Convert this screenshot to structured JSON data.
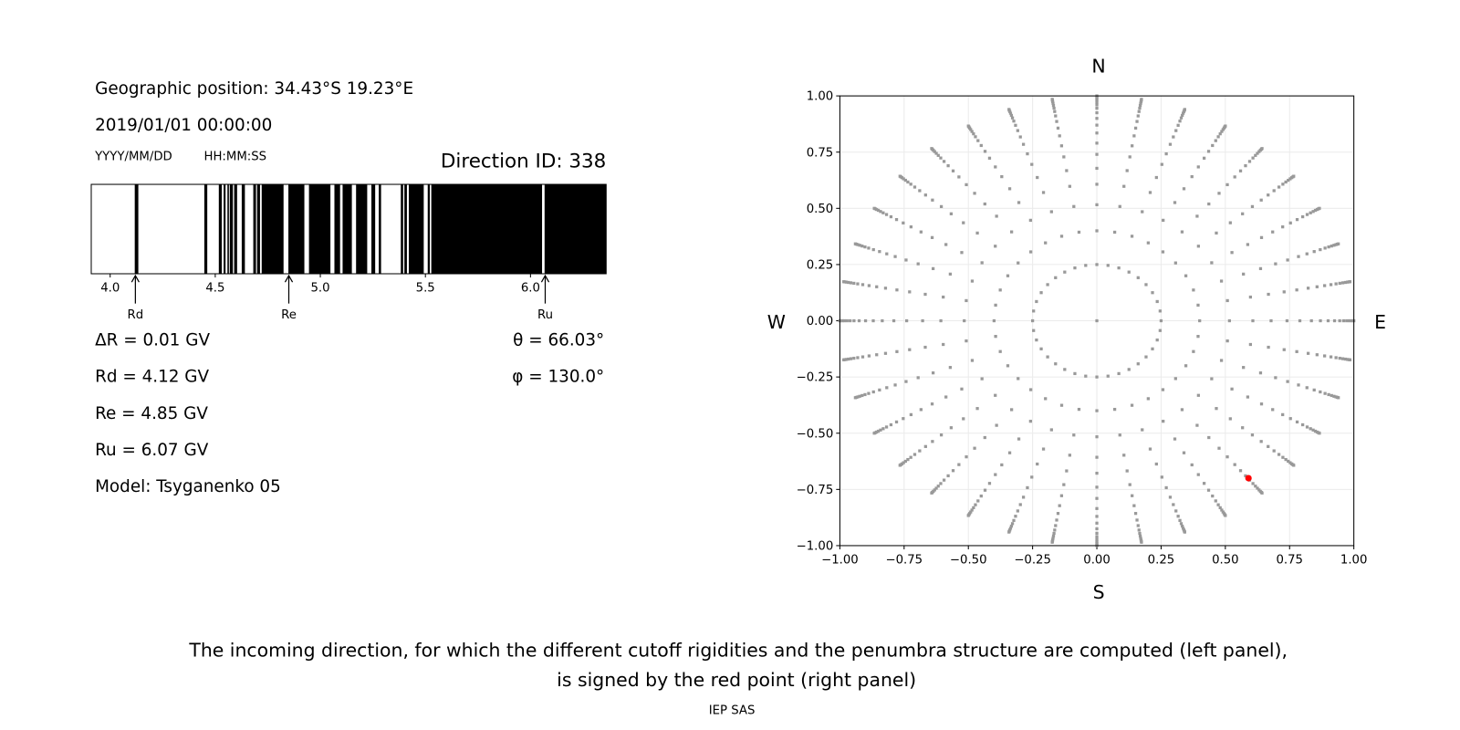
{
  "left_panel": {
    "geo_position": "Geographic position: 34.43°S 19.23°E",
    "datetime": "2019/01/01 00:00:00",
    "date_format": "YYYY/MM/DD",
    "time_format": "HH:MM:SS",
    "direction_id": "Direction ID: 338",
    "delta_r": "ΔR = 0.01 GV",
    "rd": "Rd = 4.12 GV",
    "re": "Re = 4.85 GV",
    "ru": "Ru = 6.07 GV",
    "model": "Model: Tsyganenko 05",
    "theta": "θ = 66.03°",
    "phi": "φ = 130.0°"
  },
  "caption": {
    "line1": "The incoming direction, for which the different cutoff rigidities and the penumbra structure are computed (left panel),",
    "line2": "is signed by the red point (right panel)",
    "credit": "IEP SAS"
  },
  "chart_data": [
    {
      "type": "penumbra-bar",
      "xlim": [
        3.91,
        6.36
      ],
      "xticks": [
        4.0,
        4.5,
        5.0,
        5.5,
        6.0
      ],
      "xtick_labels": [
        "4.0",
        "4.5",
        "5.0",
        "5.5",
        "6.0"
      ],
      "colors": {
        "forbidden": "#000000",
        "allowed": "#ffffff"
      },
      "forbidden_bands_gv": [
        [
          4.117,
          4.134
        ],
        [
          4.448,
          4.462
        ],
        [
          4.517,
          4.531
        ],
        [
          4.54,
          4.549
        ],
        [
          4.558,
          4.565
        ],
        [
          4.569,
          4.584
        ],
        [
          4.59,
          4.604
        ],
        [
          4.626,
          4.641
        ],
        [
          4.681,
          4.694
        ],
        [
          4.699,
          4.713
        ],
        [
          4.721,
          4.825
        ],
        [
          4.848,
          4.924
        ],
        [
          4.946,
          5.048
        ],
        [
          5.067,
          5.094
        ],
        [
          5.106,
          5.15
        ],
        [
          5.17,
          5.223
        ],
        [
          5.243,
          5.261
        ],
        [
          5.278,
          5.289
        ],
        [
          5.383,
          5.394
        ],
        [
          5.4,
          5.412
        ],
        [
          5.421,
          5.492
        ],
        [
          5.511,
          5.521
        ],
        [
          5.528,
          6.055
        ],
        [
          6.067,
          6.36
        ]
      ],
      "markers": [
        {
          "label": "Rd",
          "value": 4.12
        },
        {
          "label": "Re",
          "value": 4.85
        },
        {
          "label": "Ru",
          "value": 6.07
        }
      ]
    },
    {
      "type": "scatter",
      "xlim": [
        -1.0,
        1.0
      ],
      "ylim": [
        -1.0,
        1.0
      ],
      "grid": true,
      "xtick_labels": [
        "−1.00",
        "−0.75",
        "−0.50",
        "−0.25",
        "0.00",
        "0.25",
        "0.50",
        "0.75",
        "1.00"
      ],
      "ytick_labels": [
        "−1.00",
        "−0.75",
        "−0.50",
        "−0.25",
        "0.00",
        "0.25",
        "0.50",
        "0.75",
        "1.00"
      ],
      "ticks": [
        -1.0,
        -0.75,
        -0.5,
        -0.25,
        0,
        0.25,
        0.5,
        0.75,
        1.0
      ],
      "compass": {
        "north": "N",
        "south": "S",
        "west": "W",
        "east": "E"
      },
      "grid_points": {
        "color": "#999999",
        "center": [
          0,
          0
        ],
        "azimuth_step_deg": 10,
        "inner_ring_radius": 0.25,
        "spoke_radii": [
          0.4,
          0.516,
          0.607,
          0.678,
          0.74,
          0.79,
          0.835,
          0.87,
          0.9,
          0.925,
          0.945,
          0.96,
          0.972,
          0.982,
          0.99,
          0.996,
          1.0
        ]
      },
      "selected_point": {
        "x": 0.59,
        "y": -0.7,
        "color": "#ff0000"
      }
    }
  ]
}
